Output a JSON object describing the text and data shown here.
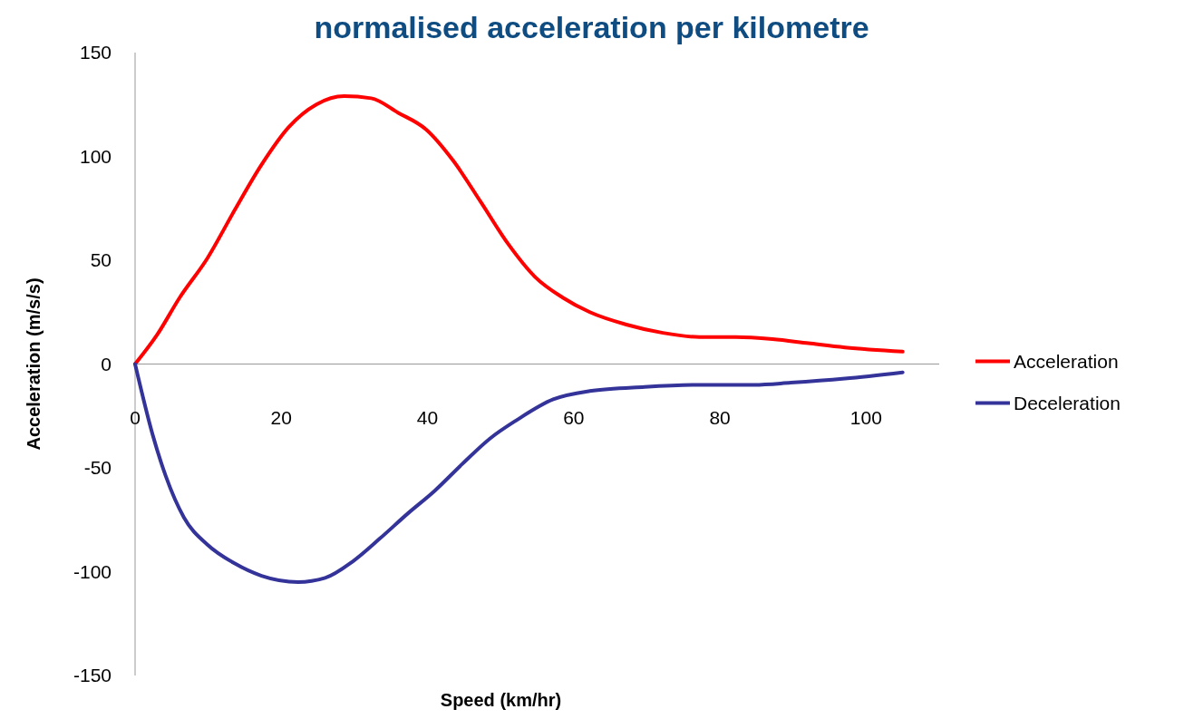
{
  "chart_data": {
    "type": "line",
    "title": "normalised acceleration per kilometre",
    "xlabel": "Speed (km/hr)",
    "ylabel": "Acceleration (m/s/s)",
    "xlim": [
      0,
      110
    ],
    "xticks": [
      0,
      20,
      40,
      60,
      80,
      100
    ],
    "ylim": [
      -150,
      150
    ],
    "yticks": [
      -150,
      -100,
      -50,
      0,
      50,
      100,
      150
    ],
    "grid": false,
    "legend": "right",
    "marker": "none",
    "line_style": "solid",
    "series": [
      {
        "name": "Acceleration",
        "color": "#ff0000",
        "x": [
          0,
          3,
          6.1,
          9.9,
          13.6,
          17.3,
          21,
          24.8,
          28.6,
          32.3,
          36,
          39.8,
          43.5,
          47.3,
          51,
          54.7,
          58.5,
          62.2,
          67.2,
          72.2,
          77.2,
          82.2,
          87.2,
          92.1,
          97.1,
          105
        ],
        "values": [
          0,
          14,
          32,
          51,
          74,
          96,
          114,
          125,
          129,
          128,
          121,
          113,
          98,
          78,
          58,
          42,
          32,
          25,
          19,
          15,
          13,
          13,
          12,
          10,
          8,
          6
        ]
      },
      {
        "name": "Deceleration",
        "color": "#333399",
        "x": [
          0,
          2.4,
          4.2,
          6.7,
          9.9,
          13.6,
          17.3,
          22.3,
          26,
          29.8,
          33.5,
          37.3,
          41,
          44.8,
          48.5,
          52.2,
          57.2,
          62.2,
          69.7,
          77.2,
          84.7,
          89.7,
          97.1,
          105
        ],
        "values": [
          0,
          -34,
          -54,
          -74,
          -87,
          -96,
          -102,
          -105,
          -103,
          -95,
          -84,
          -72,
          -61,
          -48,
          -36,
          -27,
          -17,
          -13,
          -11,
          -10,
          -10,
          -9,
          -7,
          -4
        ]
      }
    ]
  }
}
